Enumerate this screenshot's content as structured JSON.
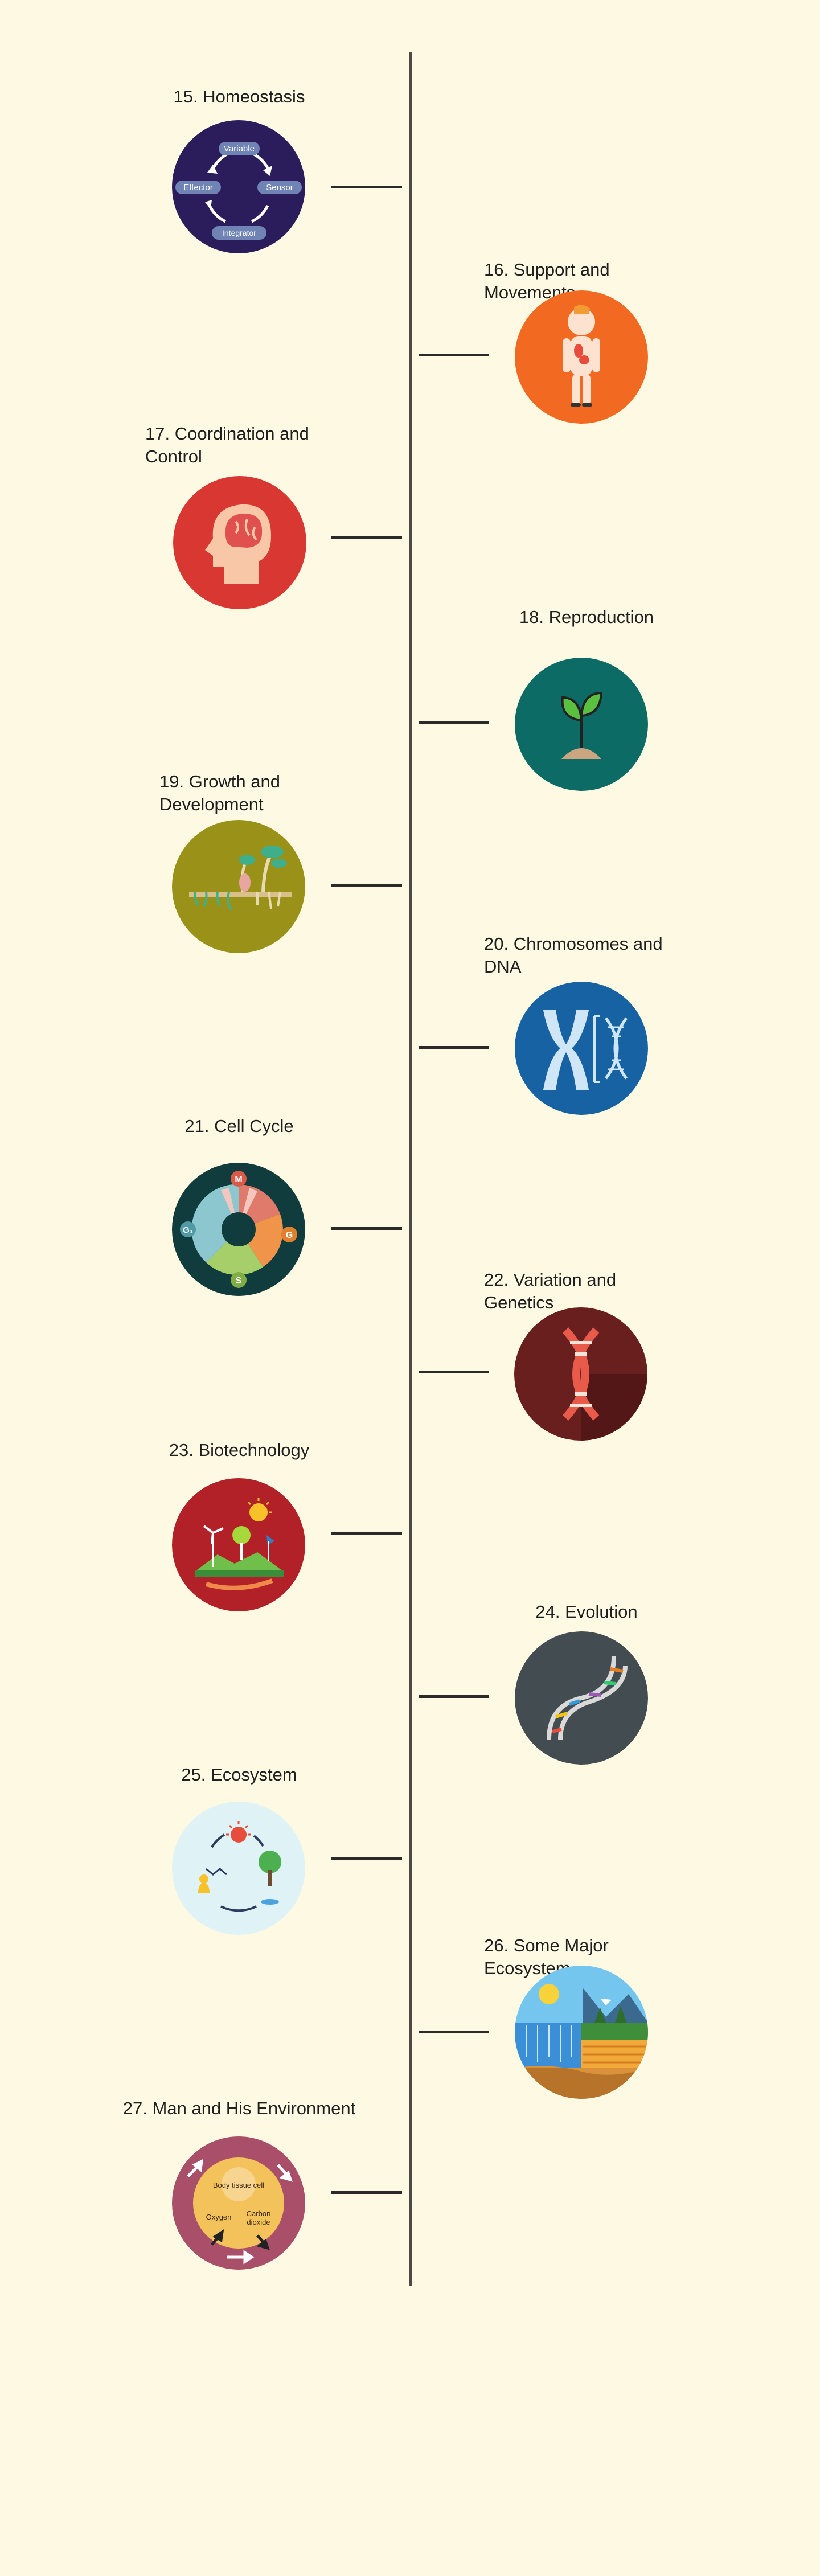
{
  "timeline": {
    "items": [
      {
        "number": "15.",
        "title": "Homeostasis",
        "icon": "homeostasis-cycle-icon",
        "bg": "#2b1d5c",
        "labels": {
          "variable": "Variable",
          "effector": "Effector",
          "sensor": "Sensor",
          "integrator": "Integrator"
        }
      },
      {
        "number": "16.",
        "title": "Support and Movements",
        "icon": "human-body-icon",
        "bg": "#f26a22"
      },
      {
        "number": "17.",
        "title": "Coordination and Control",
        "icon": "brain-head-icon",
        "bg": "#d93732"
      },
      {
        "number": "18.",
        "title": "Reproduction",
        "icon": "sprout-icon",
        "bg": "#0d6b66"
      },
      {
        "number": "19.",
        "title": "Growth and Development",
        "icon": "plant-growth-icon",
        "bg": "#9a9218"
      },
      {
        "number": "20.",
        "title": "Chromosomes and DNA",
        "icon": "chromosome-dna-icon",
        "bg": "#1662a3"
      },
      {
        "number": "21.",
        "title": "Cell Cycle",
        "icon": "cell-cycle-icon",
        "bg": "#103c3e",
        "labels": {
          "m": "M",
          "g1": "G₁",
          "s": "S",
          "g2": "G"
        }
      },
      {
        "number": "22.",
        "title": "Variation and Genetics",
        "icon": "dna-helix-icon",
        "bg": "#6a1f1f"
      },
      {
        "number": "23.",
        "title": "Biotechnology",
        "icon": "biotech-landscape-icon",
        "bg": "#b32128"
      },
      {
        "number": "24.",
        "title": "Evolution",
        "icon": "evolution-dna-icon",
        "bg": "#434c50"
      },
      {
        "number": "25.",
        "title": "Ecosystem",
        "icon": "ecosystem-cycle-icon",
        "bg": "#dff3f6"
      },
      {
        "number": "26.",
        "title": "Some Major Ecosystem",
        "icon": "major-ecosystems-icon",
        "bg": "#3a8fd6"
      },
      {
        "number": "27.",
        "title": "Man and His Environment",
        "icon": "environment-cell-icon",
        "bg": "#a94f6a",
        "labels": {
          "body_tissue_cell": "Body tissue cell",
          "oxygen": "Oxygen",
          "carbon": "Carbon",
          "dioxide": "dioxide"
        }
      }
    ]
  }
}
